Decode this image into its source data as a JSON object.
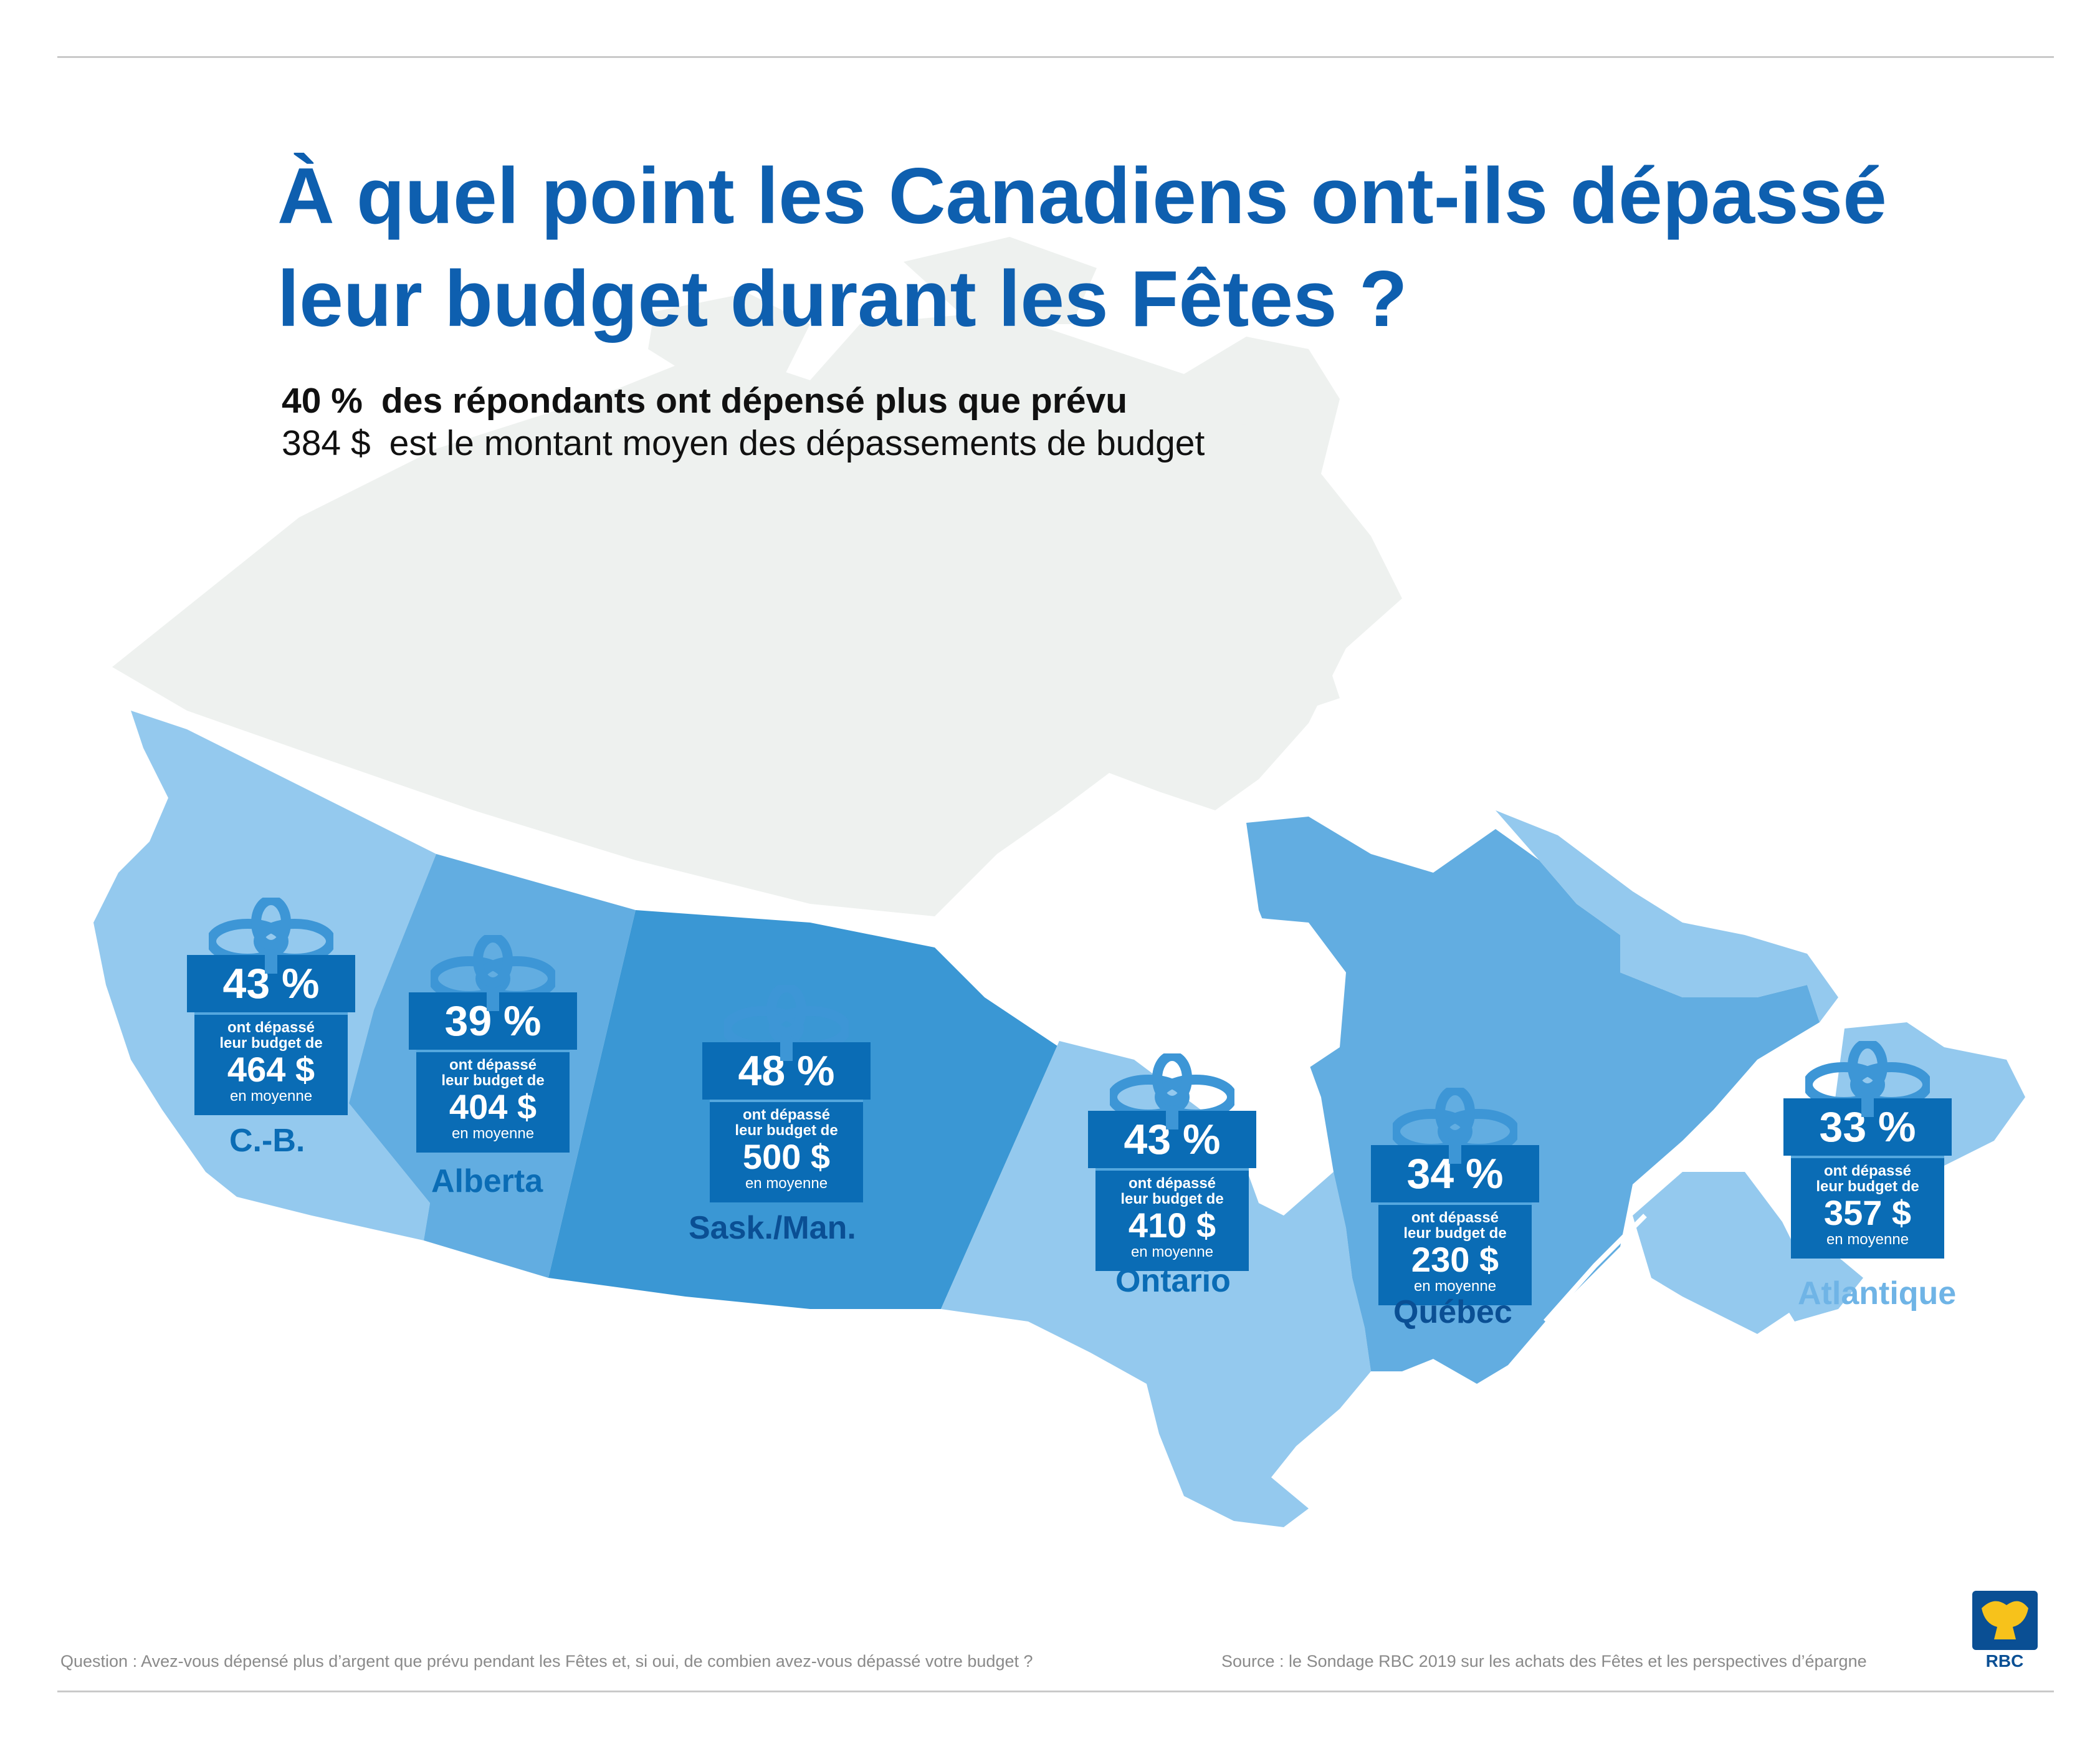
{
  "title": "À quel point les Canadiens ont-ils dépassé leur budget durant les Fêtes ?",
  "summary": {
    "line1_value": "40 %",
    "line1_text": "des répondants ont dépensé plus que prévu",
    "line2_value": "384 $",
    "line2_text": "est le montant moyen des dépassements de budget"
  },
  "gift_labels": {
    "over_text_1": "ont dépassé",
    "over_text_2": "leur budget de",
    "avg_text": "en moyenne"
  },
  "regions": [
    {
      "name": "C.-B.",
      "percent": "43 %",
      "amount": "464 $",
      "name_color": "#0a6cb5"
    },
    {
      "name": "Alberta",
      "percent": "39 %",
      "amount": "404 $",
      "name_color": "#0a6cb5"
    },
    {
      "name": "Sask./Man.",
      "percent": "48 %",
      "amount": "500 $",
      "name_color": "#0a4f94"
    },
    {
      "name": "Ontario",
      "percent": "43 %",
      "amount": "410 $",
      "name_color": "#0a6cb5"
    },
    {
      "name": "Québec",
      "percent": "34 %",
      "amount": "230 $",
      "name_color": "#0a4f94"
    },
    {
      "name": "Atlantique",
      "percent": "33 %",
      "amount": "357 $",
      "name_color": "#6fb4e6"
    }
  ],
  "colors": {
    "title": "#0e5faf",
    "gift": "#0a6cb5",
    "map_north": "#eef1ef",
    "bc": "#94c9ee",
    "alberta": "#62ade1",
    "sask_man": "#3a97d4",
    "ontario": "#94c9ee",
    "quebec": "#62ade1",
    "atlantic": "#94c9ee"
  },
  "footer": {
    "question": "Question : Avez-vous dépensé plus d’argent que prévu pendant les Fêtes et, si oui, de combien avez-vous dépassé votre budget ?",
    "source": "Source : le Sondage RBC 2019 sur les achats des Fêtes et les perspectives d’épargne"
  },
  "logo": {
    "text": "RBC",
    "icon": "rbc-lion-shield-icon"
  }
}
